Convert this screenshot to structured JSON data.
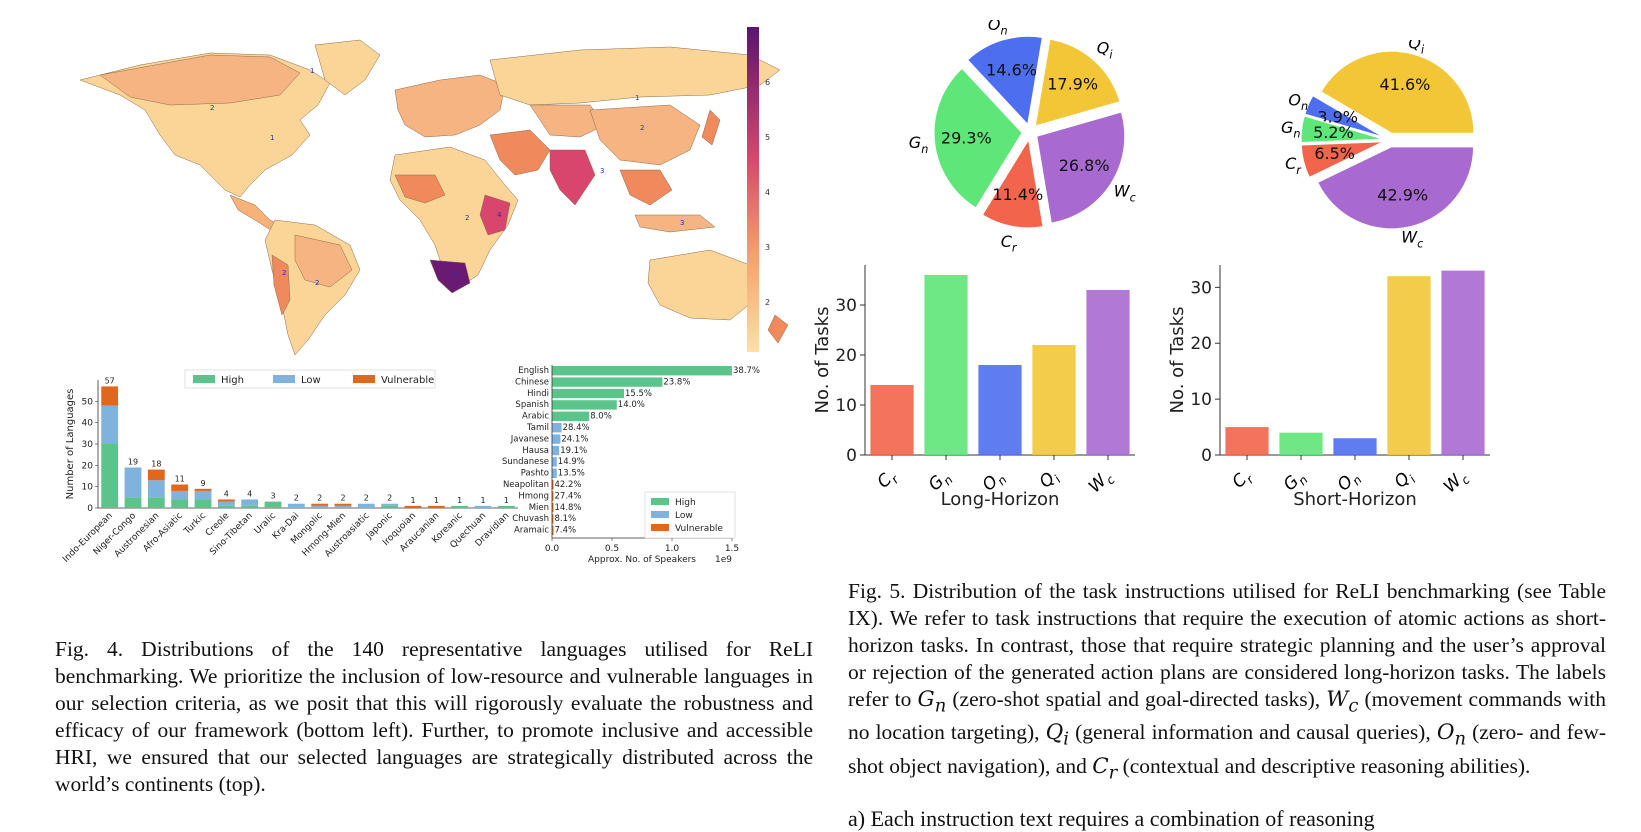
{
  "map": {
    "colorbar_ticks": [
      "6",
      "5",
      "4",
      "3",
      "2"
    ],
    "colors": {
      "low": "#fbd598",
      "mid": "#f08a5d",
      "high": "#c2326e",
      "top": "#6a1a72",
      "ocean": "#ffffff"
    },
    "country_labels": [
      {
        "text": "1"
      },
      {
        "text": "2"
      },
      {
        "text": "1"
      },
      {
        "text": "1"
      },
      {
        "text": "2"
      },
      {
        "text": "3"
      },
      {
        "text": "4"
      },
      {
        "text": "2"
      },
      {
        "text": "6"
      },
      {
        "text": "2"
      },
      {
        "text": "2"
      },
      {
        "text": "3"
      }
    ]
  },
  "fig4_bar": {
    "chart_data": {
      "type": "bar",
      "ylabel": "Number of Languages",
      "ylim": [
        0,
        60
      ],
      "yticks": [
        "0",
        "10",
        "20",
        "30",
        "40",
        "50"
      ],
      "legend": [
        "High",
        "Low",
        "Vulnerable"
      ],
      "categories": [
        "Indo-European",
        "Niger-Congo",
        "Austronesian",
        "Afro-Asiatic",
        "Turkic",
        "Creole",
        "Sino-Tibetan",
        "Uralic",
        "Kra-Dai",
        "Mongolic",
        "Hmong-Mien",
        "Austroasiatic",
        "Japonic",
        "Iroquoian",
        "Araucanian",
        "Koreanic",
        "Quechuan",
        "Dravidian"
      ],
      "totals": [
        "57",
        "19",
        "18",
        "11",
        "9",
        "4",
        "4",
        "3",
        "2",
        "2",
        "2",
        "2",
        "2",
        "1",
        "1",
        "1",
        "1",
        "1"
      ],
      "series": [
        {
          "name": "High",
          "color": "#5cc48a",
          "values": [
            30,
            5,
            5,
            4,
            4,
            1,
            1,
            3,
            0,
            0,
            0,
            0,
            1,
            0,
            0,
            1,
            0,
            1
          ]
        },
        {
          "name": "Low",
          "color": "#7fb3dd",
          "values": [
            18,
            14,
            8,
            4,
            4,
            2,
            3,
            0,
            2,
            1,
            1,
            2,
            1,
            0,
            0,
            0,
            1,
            0
          ]
        },
        {
          "name": "Vulnerable",
          "color": "#e0681e",
          "values": [
            9,
            0,
            5,
            3,
            1,
            1,
            0,
            0,
            0,
            1,
            1,
            0,
            0,
            1,
            1,
            0,
            0,
            0
          ]
        }
      ]
    }
  },
  "fig4_hbar": {
    "chart_data": {
      "type": "bar",
      "orientation": "horizontal",
      "xlabel": "Approx. No. of Speakers",
      "xexp": "1e9",
      "xlim": [
        0,
        1.5
      ],
      "xticks": [
        "0.0",
        "0.5",
        "1.0",
        "1.5"
      ],
      "legend": [
        "High",
        "Low",
        "Vulnerable"
      ],
      "categories": [
        "English",
        "Chinese",
        "Hindi",
        "Spanish",
        "Arabic",
        "Tamil",
        "Javanese",
        "Hausa",
        "Sundanese",
        "Pashto",
        "Neapolitan",
        "Hmong",
        "Mien",
        "Chuvash",
        "Aramaic"
      ],
      "values": [
        1.5,
        0.92,
        0.6,
        0.54,
        0.31,
        0.08,
        0.07,
        0.06,
        0.04,
        0.04,
        0.006,
        0.003,
        0.001,
        0.001,
        0.0001
      ],
      "labels": [
        "38.7%",
        "23.8%",
        "15.5%",
        "14.0%",
        "8.0%",
        "28.4%",
        "24.1%",
        "19.1%",
        "14.9%",
        "13.5%",
        "42.2%",
        "27.4%",
        "14.8%",
        "8.1%",
        "7.4%"
      ],
      "groups": [
        "High",
        "High",
        "High",
        "High",
        "High",
        "Low",
        "Low",
        "Low",
        "Low",
        "Low",
        "Vulnerable",
        "Vulnerable",
        "Vulnerable",
        "Vulnerable",
        "Vulnerable"
      ]
    }
  },
  "fig5_pie_long": {
    "chart_data": {
      "type": "pie",
      "slices": [
        {
          "label": "Gn",
          "sub": "n",
          "base": "G",
          "value": 29.3,
          "pct": "29.3%",
          "color": "#5ee678"
        },
        {
          "label": "Cr",
          "sub": "r",
          "base": "C",
          "value": 11.4,
          "pct": "11.4%",
          "color": "#f2644b"
        },
        {
          "label": "Wc",
          "sub": "c",
          "base": "W",
          "value": 26.8,
          "pct": "26.8%",
          "color": "#a86ad0"
        },
        {
          "label": "Qi",
          "sub": "i",
          "base": "Q",
          "value": 17.9,
          "pct": "17.9%",
          "color": "#f2c637"
        },
        {
          "label": "On",
          "sub": "n",
          "base": "O",
          "value": 14.6,
          "pct": "14.6%",
          "color": "#4e6ef0"
        }
      ]
    }
  },
  "fig5_pie_short": {
    "chart_data": {
      "type": "pie",
      "slices": [
        {
          "label": "Qi",
          "sub": "i",
          "base": "Q",
          "value": 41.6,
          "pct": "41.6%",
          "color": "#f2c637"
        },
        {
          "label": "On",
          "sub": "n",
          "base": "O",
          "value": 3.9,
          "pct": "3.9%",
          "color": "#4e6ef0"
        },
        {
          "label": "Gn",
          "sub": "n",
          "base": "G",
          "value": 5.2,
          "pct": "5.2%",
          "color": "#5ee678"
        },
        {
          "label": "Cr",
          "sub": "r",
          "base": "C",
          "value": 6.5,
          "pct": "6.5%",
          "color": "#f2644b"
        },
        {
          "label": "Wc",
          "sub": "c",
          "base": "W",
          "value": 42.9,
          "pct": "42.9%",
          "color": "#a86ad0"
        }
      ]
    }
  },
  "fig5_bar_long": {
    "chart_data": {
      "type": "bar",
      "xlabel": "Long-Horizon",
      "ylabel": "No. of Tasks",
      "ylim": [
        0,
        38
      ],
      "yticks": [
        0,
        10,
        20,
        30
      ],
      "categories": [
        {
          "base": "C",
          "sub": "r"
        },
        {
          "base": "G",
          "sub": "n"
        },
        {
          "base": "O",
          "sub": "n"
        },
        {
          "base": "Q",
          "sub": "i"
        },
        {
          "base": "W",
          "sub": "c"
        }
      ],
      "values": [
        14,
        36,
        18,
        22,
        33
      ],
      "colors": [
        "#f2644b",
        "#5ee678",
        "#4e6ef0",
        "#f2c637",
        "#a86ad0"
      ]
    }
  },
  "fig5_bar_short": {
    "chart_data": {
      "type": "bar",
      "xlabel": "Short-Horizon",
      "ylabel": "No. of Tasks",
      "ylim": [
        0,
        34
      ],
      "yticks": [
        0,
        10,
        20,
        30
      ],
      "categories": [
        {
          "base": "C",
          "sub": "r"
        },
        {
          "base": "G",
          "sub": "n"
        },
        {
          "base": "O",
          "sub": "n"
        },
        {
          "base": "Q",
          "sub": "i"
        },
        {
          "base": "W",
          "sub": "c"
        }
      ],
      "values": [
        5,
        4,
        3,
        32,
        33
      ],
      "colors": [
        "#f2644b",
        "#5ee678",
        "#4e6ef0",
        "#f2c637",
        "#a86ad0"
      ]
    }
  },
  "captions": {
    "fig4": "Fig. 4.   Distributions of the 140 representative languages utilised for ReLI benchmarking. We prioritize the inclusion of low-resource and vulnerable languages in our selection criteria, as we posit that this will rigorously evaluate the robustness and efficacy of our framework (bottom left). Further, to promote inclusive and accessible HRI, we ensured that our selected languages are strategically distributed across the world’s continents (top).",
    "fig5_a": "Fig. 5.   Distribution of the task instructions utilised for ReLI benchmarking (see Table IX). We refer to task instructions that require the execution of atomic actions as short-horizon tasks. In contrast, those that require strategic planning and the user’s approval or rejection of the generated action plans are considered long-horizon tasks. The labels refer to",
    "fig5_gn": "(zero-shot spatial and goal-directed tasks),",
    "fig5_wc": "(movement commands with no location targeting),",
    "fig5_qi": "(general information and causal queries),",
    "fig5_on": "(zero- and few-shot object navigation), and",
    "fig5_cr": "(contextual and descriptive reasoning abilities).",
    "trailing": "a) Each instruction text requires a combination of reasoning"
  }
}
